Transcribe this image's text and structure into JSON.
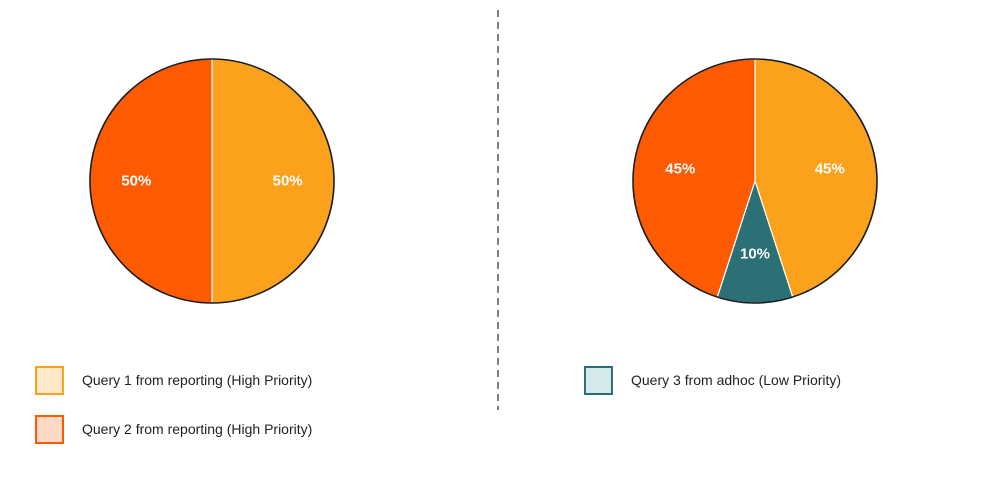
{
  "colors": {
    "orange": "#fba11b",
    "red_orange": "#fe5a02",
    "teal": "#2a7074",
    "orange_light": "#fde9c9",
    "red_orange_light": "#fedac6",
    "teal_light": "#d5e9ea"
  },
  "chart_data": [
    {
      "type": "pie",
      "slices": [
        {
          "label": "50%",
          "value": 50,
          "color": "#fba11b",
          "query": "Query 1"
        },
        {
          "label": "50%",
          "value": 50,
          "color": "#fe5a02",
          "query": "Query 2"
        }
      ]
    },
    {
      "type": "pie",
      "slices": [
        {
          "label": "45%",
          "value": 45,
          "color": "#fba11b",
          "query": "Query 1"
        },
        {
          "label": "10%",
          "value": 10,
          "color": "#2a7074",
          "query": "Query 3"
        },
        {
          "label": "45%",
          "value": 45,
          "color": "#fe5a02",
          "query": "Query 2"
        }
      ]
    }
  ],
  "legend": {
    "left": [
      {
        "text": "Query 1 from reporting (High Priority)",
        "fill": "#fde9c9",
        "border": "#fba11b"
      },
      {
        "text": "Query 2 from reporting (High Priority)",
        "fill": "#fedac6",
        "border": "#fe5a02"
      }
    ],
    "right": [
      {
        "text": "Query 3 from adhoc (Low Priority)",
        "fill": "#d5e9ea",
        "border": "#2a7074"
      }
    ]
  }
}
